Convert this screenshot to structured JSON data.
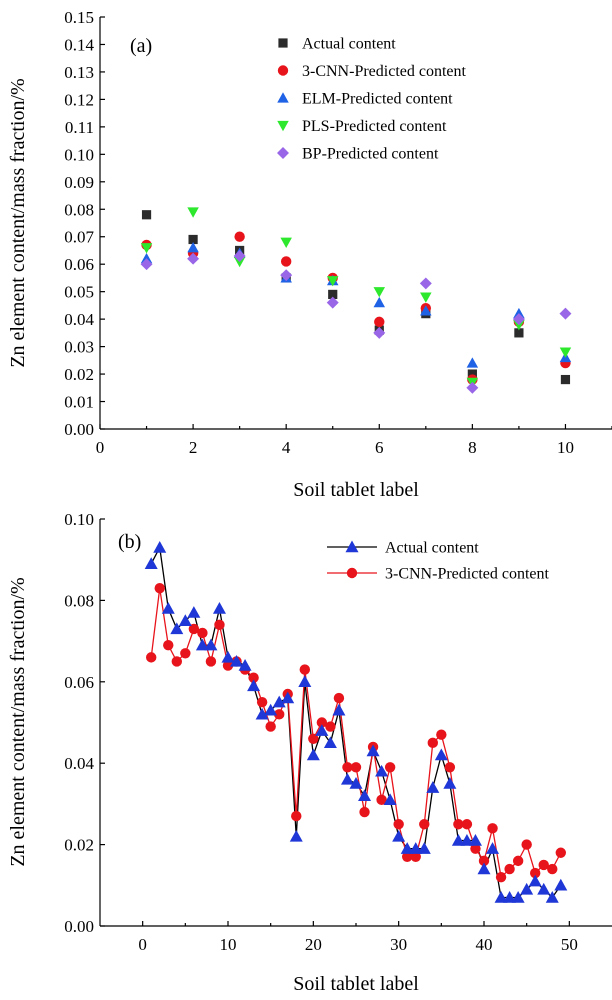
{
  "chart_data": [
    {
      "type": "scatter",
      "panel_label": "(a)",
      "xlabel": "Soil tablet label",
      "ylabel": "Zn element content/mass fraction/%",
      "xlim": [
        0,
        11
      ],
      "ylim": [
        0,
        0.15
      ],
      "x_ticks": [
        0,
        2,
        4,
        6,
        8,
        10
      ],
      "y_ticks": [
        0.0,
        0.01,
        0.02,
        0.03,
        0.04,
        0.05,
        0.06,
        0.07,
        0.08,
        0.09,
        0.1,
        0.11,
        0.12,
        0.13,
        0.14,
        0.15
      ],
      "x_tick_labels": [
        "0",
        "2",
        "4",
        "6",
        "8",
        "10"
      ],
      "y_tick_labels": [
        "0.00",
        "0.01",
        "0.02",
        "0.03",
        "0.04",
        "0.05",
        "0.06",
        "0.07",
        "0.08",
        "0.09",
        "0.10",
        "0.11",
        "0.12",
        "0.13",
        "0.14",
        "0.15"
      ],
      "legend_position": "top-right",
      "x": [
        1,
        2,
        3,
        4,
        5,
        6,
        7,
        8,
        9,
        10
      ],
      "series": [
        {
          "name": "Actual content",
          "marker": "square",
          "color": "#2b2b2b",
          "values": [
            0.078,
            0.069,
            0.065,
            0.055,
            0.049,
            0.036,
            0.042,
            0.02,
            0.035,
            0.018
          ]
        },
        {
          "name": "3-CNN-Predicted content",
          "marker": "circle",
          "color": "#e8141b",
          "values": [
            0.067,
            0.064,
            0.07,
            0.061,
            0.055,
            0.039,
            0.044,
            0.018,
            0.039,
            0.024
          ]
        },
        {
          "name": "ELM-Predicted content",
          "marker": "triangle-up",
          "color": "#1f62e6",
          "values": [
            0.062,
            0.066,
            0.064,
            0.055,
            0.054,
            0.046,
            0.043,
            0.024,
            0.042,
            0.026
          ]
        },
        {
          "name": "PLS-Predicted content",
          "marker": "triangle-down",
          "color": "#2ee82e",
          "values": [
            0.066,
            0.079,
            0.061,
            0.068,
            0.054,
            0.05,
            0.048,
            0.017,
            0.038,
            0.028
          ]
        },
        {
          "name": "BP-Predicted content",
          "marker": "diamond",
          "color": "#9966e8",
          "values": [
            0.06,
            0.062,
            0.063,
            0.056,
            0.046,
            0.035,
            0.053,
            0.015,
            0.04,
            0.042
          ]
        }
      ]
    },
    {
      "type": "line",
      "panel_label": "(b)",
      "xlabel": "Soil tablet label",
      "ylabel": "Zn element content/mass fraction/%",
      "xlim": [
        -5,
        55
      ],
      "ylim": [
        0,
        0.1
      ],
      "x_ticks": [
        0,
        10,
        20,
        30,
        40,
        50
      ],
      "y_ticks": [
        0.0,
        0.02,
        0.04,
        0.06,
        0.08,
        0.1
      ],
      "x_tick_labels": [
        "0",
        "10",
        "20",
        "30",
        "40",
        "50"
      ],
      "y_tick_labels": [
        "0.00",
        "0.02",
        "0.04",
        "0.06",
        "0.08",
        "0.10"
      ],
      "legend_position": "top-right",
      "x": [
        1,
        2,
        3,
        4,
        5,
        6,
        7,
        8,
        9,
        10,
        11,
        12,
        13,
        14,
        15,
        16,
        17,
        18,
        19,
        20,
        21,
        22,
        23,
        24,
        25,
        26,
        27,
        28,
        29,
        30,
        31,
        32,
        33,
        34,
        35,
        36,
        37,
        38,
        39,
        40,
        41,
        42,
        43,
        44,
        45,
        46,
        47,
        48,
        49
      ],
      "series": [
        {
          "name": "Actual content",
          "marker": "triangle-up",
          "color": "#1f37d6",
          "line_color": "#000000",
          "values": [
            0.089,
            0.093,
            0.078,
            0.073,
            0.075,
            0.077,
            0.069,
            0.069,
            0.078,
            0.066,
            0.065,
            0.064,
            0.059,
            0.052,
            0.053,
            0.055,
            0.056,
            0.022,
            0.06,
            0.042,
            0.048,
            0.045,
            0.053,
            0.036,
            0.035,
            0.032,
            0.043,
            0.038,
            0.031,
            0.022,
            0.019,
            0.019,
            0.019,
            0.034,
            0.042,
            0.035,
            0.021,
            0.021,
            0.021,
            0.014,
            0.019,
            0.007,
            0.007,
            0.007,
            0.009,
            0.011,
            0.009,
            0.007,
            0.01
          ]
        },
        {
          "name": "3-CNN-Predicted content",
          "marker": "circle",
          "color": "#e8141b",
          "line_color": "#e8141b",
          "values": [
            0.066,
            0.083,
            0.069,
            0.065,
            0.067,
            0.073,
            0.072,
            0.065,
            0.074,
            0.064,
            0.065,
            0.063,
            0.061,
            0.055,
            0.049,
            0.052,
            0.057,
            0.027,
            0.063,
            0.046,
            0.05,
            0.049,
            0.056,
            0.039,
            0.039,
            0.028,
            0.044,
            0.031,
            0.039,
            0.025,
            0.017,
            0.017,
            0.025,
            0.045,
            0.047,
            0.039,
            0.025,
            0.025,
            0.019,
            0.016,
            0.024,
            0.012,
            0.014,
            0.016,
            0.02,
            0.013,
            0.015,
            0.014,
            0.018
          ]
        }
      ]
    }
  ]
}
